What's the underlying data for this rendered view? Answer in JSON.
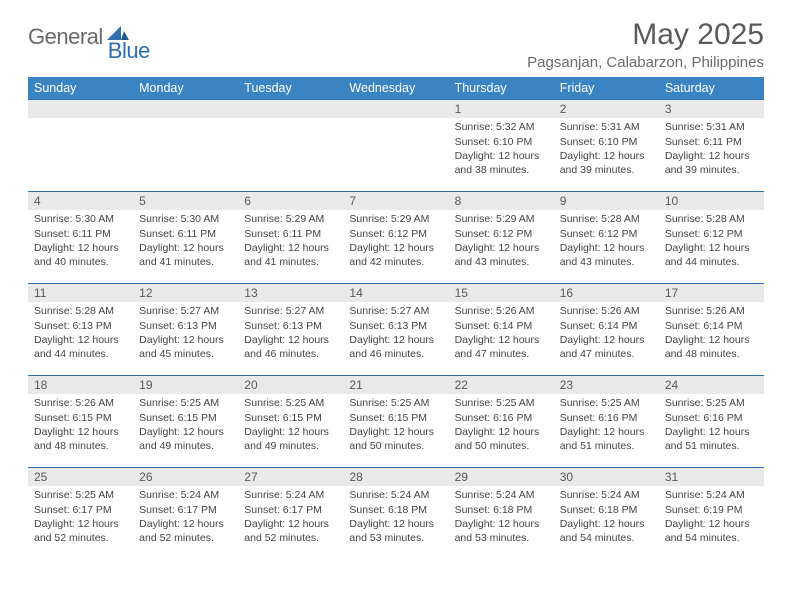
{
  "logo": {
    "general": "General",
    "blue": "Blue"
  },
  "title": "May 2025",
  "location": "Pagsanjan, Calabarzon, Philippines",
  "colors": {
    "header_bg": "#3b84c4",
    "header_text": "#ffffff",
    "rule": "#2f6fb0",
    "daynum_bg": "#e9e9e9",
    "logo_gray": "#6a6a6a",
    "logo_blue": "#2f6fb0"
  },
  "weekdays": [
    "Sunday",
    "Monday",
    "Tuesday",
    "Wednesday",
    "Thursday",
    "Friday",
    "Saturday"
  ],
  "weeks": [
    [
      {
        "n": "",
        "lines": []
      },
      {
        "n": "",
        "lines": []
      },
      {
        "n": "",
        "lines": []
      },
      {
        "n": "",
        "lines": []
      },
      {
        "n": "1",
        "lines": [
          "Sunrise: 5:32 AM",
          "Sunset: 6:10 PM",
          "Daylight: 12 hours",
          "and 38 minutes."
        ]
      },
      {
        "n": "2",
        "lines": [
          "Sunrise: 5:31 AM",
          "Sunset: 6:10 PM",
          "Daylight: 12 hours",
          "and 39 minutes."
        ]
      },
      {
        "n": "3",
        "lines": [
          "Sunrise: 5:31 AM",
          "Sunset: 6:11 PM",
          "Daylight: 12 hours",
          "and 39 minutes."
        ]
      }
    ],
    [
      {
        "n": "4",
        "lines": [
          "Sunrise: 5:30 AM",
          "Sunset: 6:11 PM",
          "Daylight: 12 hours",
          "and 40 minutes."
        ]
      },
      {
        "n": "5",
        "lines": [
          "Sunrise: 5:30 AM",
          "Sunset: 6:11 PM",
          "Daylight: 12 hours",
          "and 41 minutes."
        ]
      },
      {
        "n": "6",
        "lines": [
          "Sunrise: 5:29 AM",
          "Sunset: 6:11 PM",
          "Daylight: 12 hours",
          "and 41 minutes."
        ]
      },
      {
        "n": "7",
        "lines": [
          "Sunrise: 5:29 AM",
          "Sunset: 6:12 PM",
          "Daylight: 12 hours",
          "and 42 minutes."
        ]
      },
      {
        "n": "8",
        "lines": [
          "Sunrise: 5:29 AM",
          "Sunset: 6:12 PM",
          "Daylight: 12 hours",
          "and 43 minutes."
        ]
      },
      {
        "n": "9",
        "lines": [
          "Sunrise: 5:28 AM",
          "Sunset: 6:12 PM",
          "Daylight: 12 hours",
          "and 43 minutes."
        ]
      },
      {
        "n": "10",
        "lines": [
          "Sunrise: 5:28 AM",
          "Sunset: 6:12 PM",
          "Daylight: 12 hours",
          "and 44 minutes."
        ]
      }
    ],
    [
      {
        "n": "11",
        "lines": [
          "Sunrise: 5:28 AM",
          "Sunset: 6:13 PM",
          "Daylight: 12 hours",
          "and 44 minutes."
        ]
      },
      {
        "n": "12",
        "lines": [
          "Sunrise: 5:27 AM",
          "Sunset: 6:13 PM",
          "Daylight: 12 hours",
          "and 45 minutes."
        ]
      },
      {
        "n": "13",
        "lines": [
          "Sunrise: 5:27 AM",
          "Sunset: 6:13 PM",
          "Daylight: 12 hours",
          "and 46 minutes."
        ]
      },
      {
        "n": "14",
        "lines": [
          "Sunrise: 5:27 AM",
          "Sunset: 6:13 PM",
          "Daylight: 12 hours",
          "and 46 minutes."
        ]
      },
      {
        "n": "15",
        "lines": [
          "Sunrise: 5:26 AM",
          "Sunset: 6:14 PM",
          "Daylight: 12 hours",
          "and 47 minutes."
        ]
      },
      {
        "n": "16",
        "lines": [
          "Sunrise: 5:26 AM",
          "Sunset: 6:14 PM",
          "Daylight: 12 hours",
          "and 47 minutes."
        ]
      },
      {
        "n": "17",
        "lines": [
          "Sunrise: 5:26 AM",
          "Sunset: 6:14 PM",
          "Daylight: 12 hours",
          "and 48 minutes."
        ]
      }
    ],
    [
      {
        "n": "18",
        "lines": [
          "Sunrise: 5:26 AM",
          "Sunset: 6:15 PM",
          "Daylight: 12 hours",
          "and 48 minutes."
        ]
      },
      {
        "n": "19",
        "lines": [
          "Sunrise: 5:25 AM",
          "Sunset: 6:15 PM",
          "Daylight: 12 hours",
          "and 49 minutes."
        ]
      },
      {
        "n": "20",
        "lines": [
          "Sunrise: 5:25 AM",
          "Sunset: 6:15 PM",
          "Daylight: 12 hours",
          "and 49 minutes."
        ]
      },
      {
        "n": "21",
        "lines": [
          "Sunrise: 5:25 AM",
          "Sunset: 6:15 PM",
          "Daylight: 12 hours",
          "and 50 minutes."
        ]
      },
      {
        "n": "22",
        "lines": [
          "Sunrise: 5:25 AM",
          "Sunset: 6:16 PM",
          "Daylight: 12 hours",
          "and 50 minutes."
        ]
      },
      {
        "n": "23",
        "lines": [
          "Sunrise: 5:25 AM",
          "Sunset: 6:16 PM",
          "Daylight: 12 hours",
          "and 51 minutes."
        ]
      },
      {
        "n": "24",
        "lines": [
          "Sunrise: 5:25 AM",
          "Sunset: 6:16 PM",
          "Daylight: 12 hours",
          "and 51 minutes."
        ]
      }
    ],
    [
      {
        "n": "25",
        "lines": [
          "Sunrise: 5:25 AM",
          "Sunset: 6:17 PM",
          "Daylight: 12 hours",
          "and 52 minutes."
        ]
      },
      {
        "n": "26",
        "lines": [
          "Sunrise: 5:24 AM",
          "Sunset: 6:17 PM",
          "Daylight: 12 hours",
          "and 52 minutes."
        ]
      },
      {
        "n": "27",
        "lines": [
          "Sunrise: 5:24 AM",
          "Sunset: 6:17 PM",
          "Daylight: 12 hours",
          "and 52 minutes."
        ]
      },
      {
        "n": "28",
        "lines": [
          "Sunrise: 5:24 AM",
          "Sunset: 6:18 PM",
          "Daylight: 12 hours",
          "and 53 minutes."
        ]
      },
      {
        "n": "29",
        "lines": [
          "Sunrise: 5:24 AM",
          "Sunset: 6:18 PM",
          "Daylight: 12 hours",
          "and 53 minutes."
        ]
      },
      {
        "n": "30",
        "lines": [
          "Sunrise: 5:24 AM",
          "Sunset: 6:18 PM",
          "Daylight: 12 hours",
          "and 54 minutes."
        ]
      },
      {
        "n": "31",
        "lines": [
          "Sunrise: 5:24 AM",
          "Sunset: 6:19 PM",
          "Daylight: 12 hours",
          "and 54 minutes."
        ]
      }
    ]
  ]
}
